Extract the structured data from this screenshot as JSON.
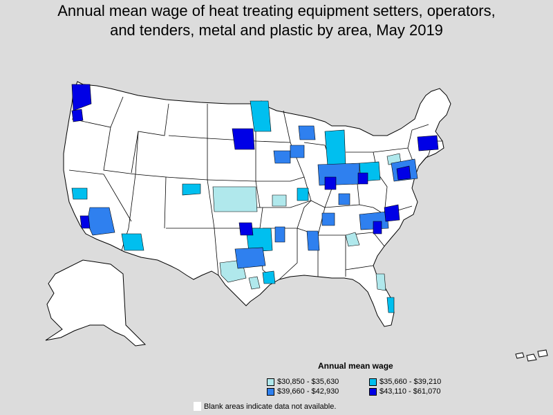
{
  "title_lines": [
    "Annual mean wage of heat treating equipment setters, operators,",
    "and tenders, metal and plastic by area, May 2019"
  ],
  "legend": {
    "title": "Annual mean wage",
    "items": [
      {
        "label": "$30,850 - $35,630",
        "color": "#b0e8ec"
      },
      {
        "label": "$35,660 - $39,210",
        "color": "#00bfef"
      },
      {
        "label": "$39,660 - $42,930",
        "color": "#2f80ef"
      },
      {
        "label": "$43,110 - $61,070",
        "color": "#0000e6"
      }
    ]
  },
  "note": "Blank areas indicate data not available.",
  "colors": {
    "background": "#dcdcdc",
    "land": "#ffffff",
    "border": "#000000"
  }
}
